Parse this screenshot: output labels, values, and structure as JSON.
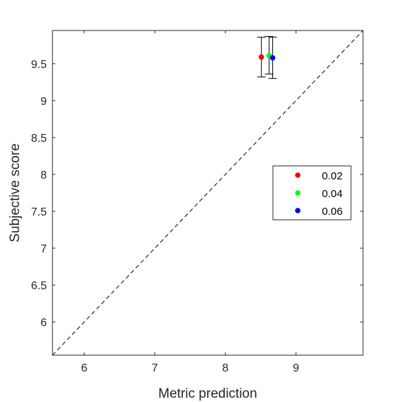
{
  "chart_data": {
    "type": "scatter",
    "title": "",
    "xlabel": "Metric prediction",
    "ylabel": "Subjective score",
    "xlim": [
      5.55,
      9.95
    ],
    "ylim": [
      5.55,
      9.95
    ],
    "xticks": [
      6,
      7,
      8,
      9
    ],
    "xtick_labels": [
      "6",
      "7",
      "8",
      "9"
    ],
    "yticks": [
      6,
      6.5,
      7,
      7.5,
      8,
      8.5,
      9,
      9.5
    ],
    "ytick_labels": [
      "6",
      "6.5",
      "7",
      "7.5",
      "8",
      "8.5",
      "9",
      "9.5"
    ],
    "grid": false,
    "reference_line": {
      "style": "dashed",
      "color": "#000000",
      "from": [
        5.55,
        5.55
      ],
      "to": [
        9.95,
        9.95
      ]
    },
    "legend_position": "right",
    "series": [
      {
        "name": "0.02",
        "color": "#ff0000",
        "x": 8.51,
        "y": 9.59,
        "yerr_low": 9.32,
        "yerr_high": 9.86
      },
      {
        "name": "0.04",
        "color": "#00ff00",
        "x": 8.62,
        "y": 9.61,
        "yerr_low": 9.36,
        "yerr_high": 9.87
      },
      {
        "name": "0.06",
        "color": "#0000ff",
        "x": 8.67,
        "y": 9.58,
        "yerr_low": 9.3,
        "yerr_high": 9.86
      }
    ]
  }
}
